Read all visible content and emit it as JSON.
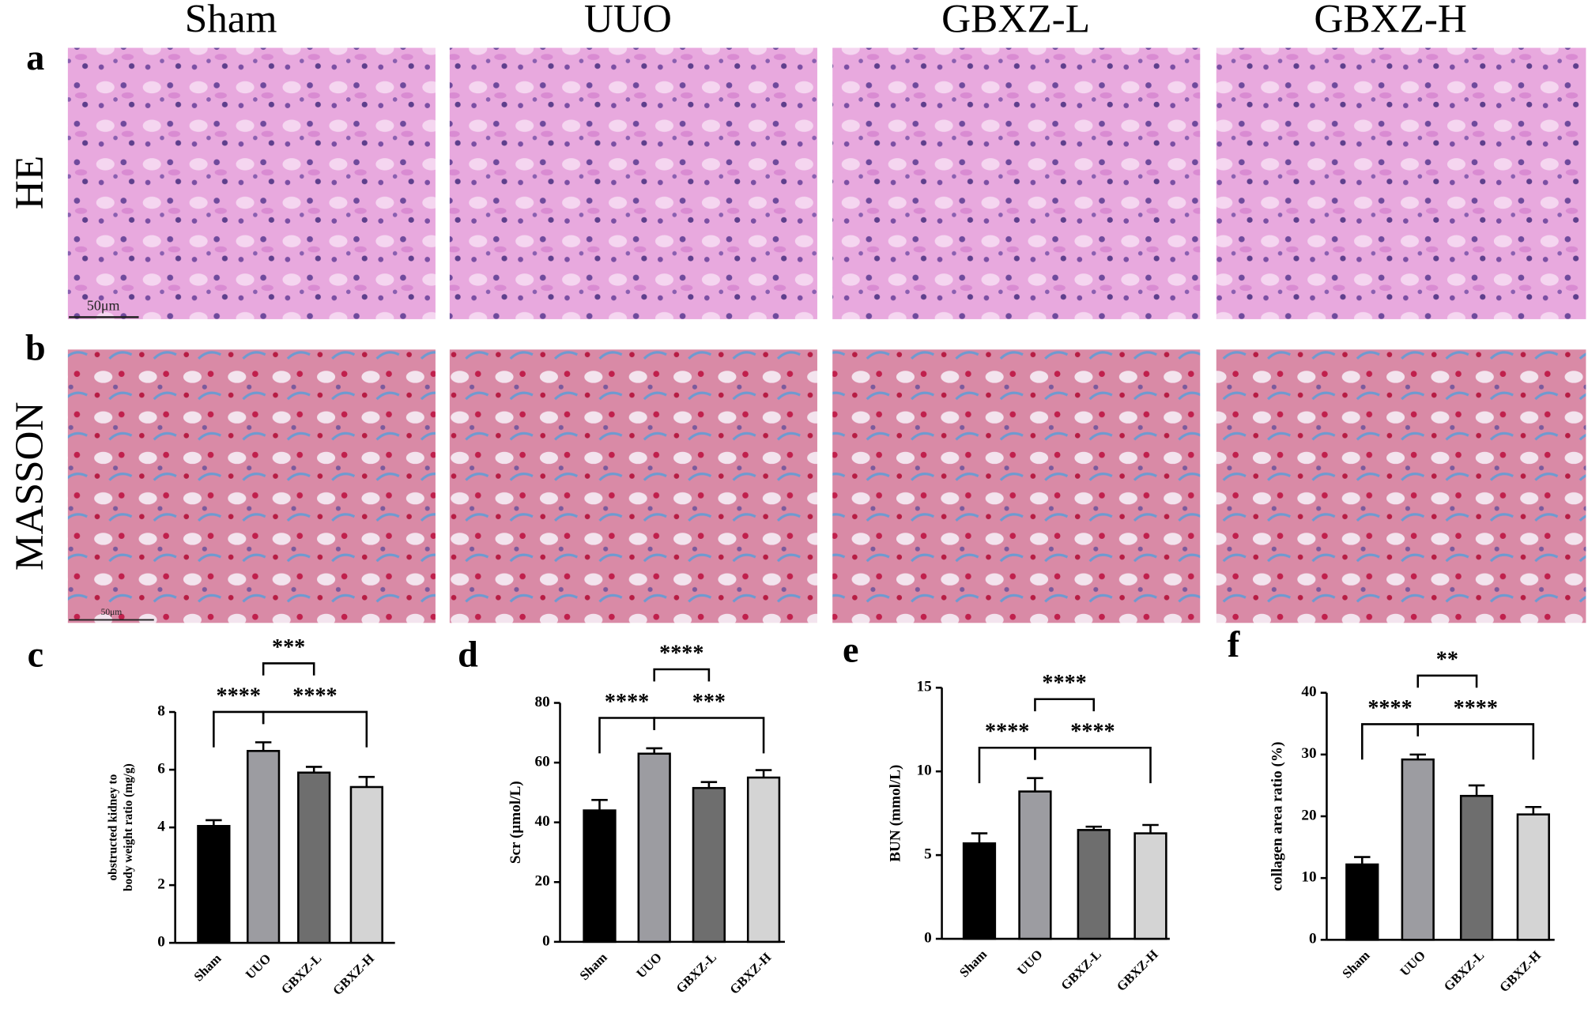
{
  "figure": {
    "column_headers": [
      "Sham",
      "UUO",
      "GBXZ-L",
      "GBXZ-H"
    ],
    "panel_labels": [
      "a",
      "b",
      "c",
      "d",
      "e",
      "f"
    ],
    "row_labels": [
      "HE",
      "MASSON"
    ],
    "scale_bars": [
      "50μm",
      "50μm"
    ]
  },
  "chart_data": [
    {
      "type": "bar",
      "y_label": [
        "obstructed kidney to",
        "body weight ratio (mg/g)"
      ],
      "categories": [
        "Sham",
        "UUO",
        "GBXZ-L",
        "GBXZ-H"
      ],
      "values": [
        4.05,
        6.65,
        5.9,
        5.4
      ],
      "errors": [
        0.2,
        0.3,
        0.2,
        0.35
      ],
      "colors": [
        "#000000",
        "#9c9ca1",
        "#6e6e6e",
        "#d4d4d4"
      ],
      "ylim": [
        0,
        8
      ],
      "yticks": [
        0,
        2,
        4,
        6,
        8
      ],
      "comparisons": [
        {
          "label": "****",
          "between": [
            0,
            1
          ]
        },
        {
          "label": "****",
          "between": [
            1,
            3
          ]
        },
        {
          "label": "***",
          "between": [
            1,
            2
          ]
        }
      ]
    },
    {
      "type": "bar",
      "y_label": [
        "Scr (μmol/L)"
      ],
      "categories": [
        "Sham",
        "UUO",
        "GBXZ-L",
        "GBXZ-H"
      ],
      "values": [
        44,
        63,
        51.5,
        55
      ],
      "errors": [
        3.5,
        1.8,
        2,
        2.5
      ],
      "colors": [
        "#000000",
        "#9c9ca1",
        "#6e6e6e",
        "#d4d4d4"
      ],
      "ylim": [
        0,
        80
      ],
      "yticks": [
        0,
        20,
        40,
        60,
        80
      ],
      "comparisons": [
        {
          "label": "****",
          "between": [
            0,
            1
          ]
        },
        {
          "label": "***",
          "between": [
            1,
            3
          ]
        },
        {
          "label": "****",
          "between": [
            1,
            2
          ]
        }
      ]
    },
    {
      "type": "bar",
      "y_label": [
        "BUN (mmol/L)"
      ],
      "categories": [
        "Sham",
        "UUO",
        "GBXZ-L",
        "GBXZ-H"
      ],
      "values": [
        5.7,
        8.8,
        6.5,
        6.3
      ],
      "errors": [
        0.6,
        0.8,
        0.2,
        0.5
      ],
      "colors": [
        "#000000",
        "#9c9ca1",
        "#6e6e6e",
        "#d4d4d4"
      ],
      "ylim": [
        0,
        15
      ],
      "yticks": [
        0,
        5,
        10,
        15
      ],
      "comparisons": [
        {
          "label": "****",
          "between": [
            0,
            1
          ]
        },
        {
          "label": "****",
          "between": [
            1,
            3
          ]
        },
        {
          "label": "****",
          "between": [
            1,
            2
          ]
        }
      ]
    },
    {
      "type": "bar",
      "y_label": [
        "collagen area ratio (%)"
      ],
      "categories": [
        "Sham",
        "UUO",
        "GBXZ-L",
        "GBXZ-H"
      ],
      "values": [
        12.2,
        29.2,
        23.3,
        20.3
      ],
      "errors": [
        1.2,
        0.8,
        1.7,
        1.2
      ],
      "colors": [
        "#000000",
        "#9c9ca1",
        "#6e6e6e",
        "#d4d4d4"
      ],
      "ylim": [
        0,
        40
      ],
      "yticks": [
        0,
        10,
        20,
        30,
        40
      ],
      "comparisons": [
        {
          "label": "****",
          "between": [
            0,
            1
          ]
        },
        {
          "label": "****",
          "between": [
            1,
            3
          ]
        },
        {
          "label": "**",
          "between": [
            1,
            2
          ]
        }
      ]
    }
  ]
}
